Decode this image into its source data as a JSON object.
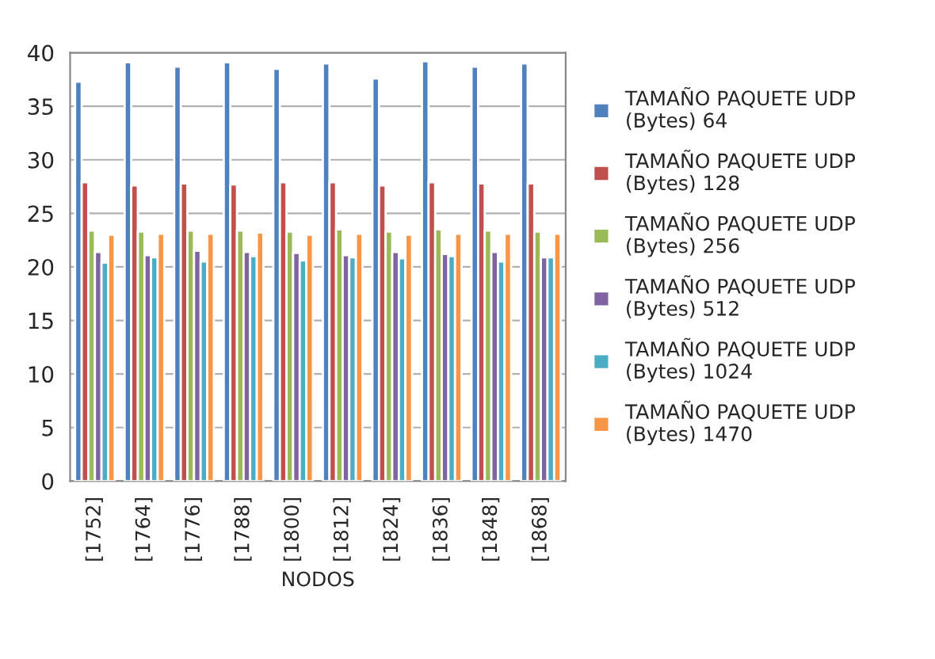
{
  "chart_data": {
    "type": "bar",
    "xlabel": "NODOS",
    "categories": [
      "[1752]",
      "[1764]",
      "[1776]",
      "[1788]",
      "[1800]",
      "[1812]",
      "[1824]",
      "[1836]",
      "[1848]",
      "[1868]"
    ],
    "series": [
      {
        "name": "TAMAÑO PAQUETE UDP\n(Bytes) 64",
        "color": "#4f81bd",
        "values": [
          37.3,
          39.1,
          38.7,
          39.1,
          38.5,
          39.0,
          37.6,
          39.2,
          38.7,
          39.0
        ]
      },
      {
        "name": "TAMAÑO PAQUETE UDP\n(Bytes) 128",
        "color": "#c0504d",
        "values": [
          27.9,
          27.6,
          27.8,
          27.7,
          27.9,
          27.9,
          27.6,
          27.9,
          27.8,
          27.8
        ]
      },
      {
        "name": "TAMAÑO PAQUETE UDP\n(Bytes) 256",
        "color": "#9bbb59",
        "values": [
          23.4,
          23.3,
          23.4,
          23.4,
          23.3,
          23.5,
          23.3,
          23.5,
          23.4,
          23.3
        ]
      },
      {
        "name": "TAMAÑO PAQUETE UDP\n(Bytes) 512",
        "color": "#8064a2",
        "values": [
          21.4,
          21.1,
          21.5,
          21.4,
          21.3,
          21.1,
          21.4,
          21.2,
          21.4,
          20.9
        ]
      },
      {
        "name": "TAMAÑO PAQUETE UDP\n(Bytes) 1024",
        "color": "#4bacc6",
        "values": [
          20.4,
          20.9,
          20.5,
          21.0,
          20.6,
          20.9,
          20.8,
          21.0,
          20.5,
          20.9
        ]
      },
      {
        "name": "TAMAÑO PAQUETE UDP\n(Bytes) 1470",
        "color": "#f79646",
        "values": [
          23.0,
          23.1,
          23.1,
          23.2,
          23.0,
          23.1,
          23.0,
          23.1,
          23.1,
          23.1
        ]
      }
    ],
    "ylim": [
      0,
      40
    ],
    "yticks": [
      0,
      5,
      10,
      15,
      20,
      25,
      30,
      35,
      40
    ],
    "grid": "y",
    "legend": "right"
  }
}
